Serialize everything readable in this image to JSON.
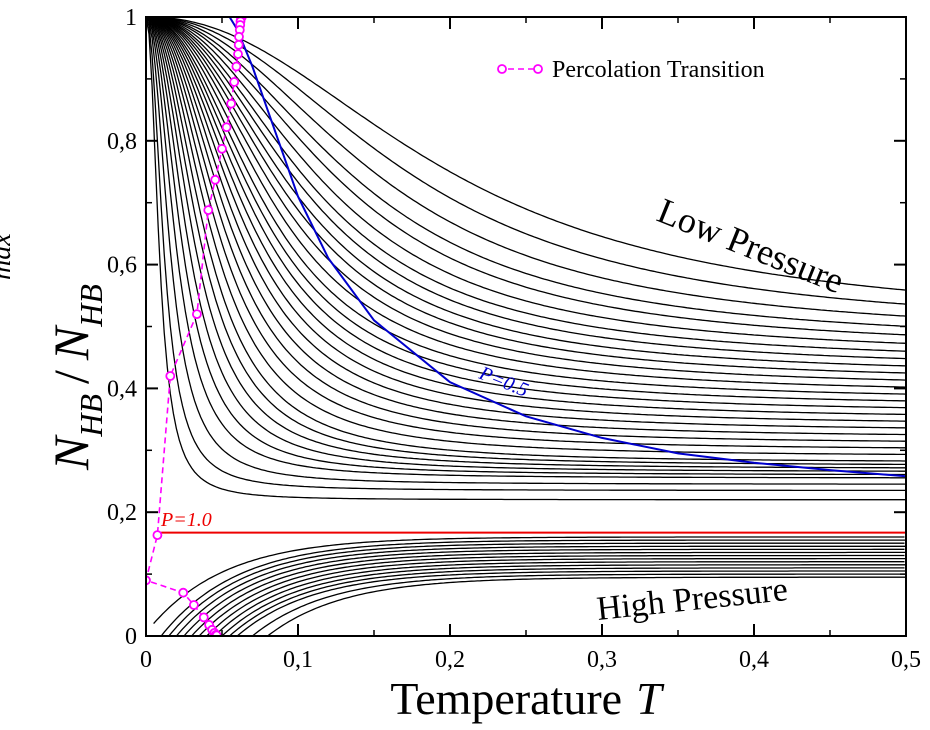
{
  "chart_data": {
    "type": "line",
    "title": "",
    "xlabel": "Temperature",
    "xlabel_symbol": "T",
    "ylabel": {
      "n": "N",
      "n_sub": "HB",
      "slash": "/",
      "d": "N",
      "d_sub": "HB",
      "d_sup": "max"
    },
    "xlim": [
      0,
      0.5
    ],
    "ylim": [
      0,
      1
    ],
    "xticks": [
      "0",
      "0,1",
      "0,2",
      "0,3",
      "0,4",
      "0,5"
    ],
    "yticks": [
      "0",
      "0,2",
      "0,4",
      "0,6",
      "0,8",
      "1"
    ],
    "grid": false,
    "legend_position": "top-right",
    "legend": [
      {
        "label": "Percolation Transition",
        "color": "#ff00ff"
      }
    ],
    "annotations": {
      "low_pressure": "Low Pressure",
      "high_pressure": "High Pressure",
      "p_half": "P=0.5",
      "p_one": "P=1.0"
    },
    "colors": {
      "isobar": "#000000",
      "p_half": "#0000cc",
      "p_one": "#ee0000",
      "percolation": "#ff00ff"
    },
    "series": [
      {
        "name": "Percolation Transition",
        "marker": "open-circle",
        "line": "dashed",
        "x": [
          0.063,
          0.0625,
          0.0622,
          0.062,
          0.0617,
          0.0612,
          0.061,
          0.0605,
          0.0595,
          0.058,
          0.056,
          0.053,
          0.05,
          0.0455,
          0.041,
          0.0335,
          0.016,
          0.0075,
          0.0,
          0.0245,
          0.0315,
          0.038,
          0.0415,
          0.0435,
          0.045,
          0.046,
          0.0465
        ],
        "y": [
          1.0,
          0.998,
          0.993,
          0.987,
          0.979,
          0.968,
          0.955,
          0.94,
          0.92,
          0.895,
          0.86,
          0.822,
          0.787,
          0.737,
          0.688,
          0.52,
          0.42,
          0.163,
          0.09,
          0.07,
          0.05,
          0.03,
          0.018,
          0.01,
          0.005,
          0.002,
          0.001
        ]
      }
    ],
    "isobars": {
      "description_note": "",
      "low_pressure_family": [
        {
          "knee_T": 0.009,
          "plateau": 0.22
        },
        {
          "knee_T": 0.012,
          "plateau": 0.235
        },
        {
          "knee_T": 0.016,
          "plateau": 0.245
        },
        {
          "knee_T": 0.02,
          "plateau": 0.255
        },
        {
          "knee_T": 0.024,
          "plateau": 0.26
        },
        {
          "knee_T": 0.028,
          "plateau": 0.265
        },
        {
          "knee_T": 0.032,
          "plateau": 0.27
        },
        {
          "knee_T": 0.036,
          "plateau": 0.275
        },
        {
          "knee_T": 0.04,
          "plateau": 0.28
        },
        {
          "knee_T": 0.044,
          "plateau": 0.29
        },
        {
          "knee_T": 0.048,
          "plateau": 0.3
        },
        {
          "knee_T": 0.052,
          "plateau": 0.31
        },
        {
          "knee_T": 0.056,
          "plateau": 0.32
        },
        {
          "knee_T": 0.06,
          "plateau": 0.33
        },
        {
          "knee_T": 0.064,
          "plateau": 0.34
        },
        {
          "knee_T": 0.068,
          "plateau": 0.35
        },
        {
          "knee_T": 0.072,
          "plateau": 0.36
        },
        {
          "knee_T": 0.076,
          "plateau": 0.37
        },
        {
          "knee_T": 0.08,
          "plateau": 0.38
        },
        {
          "knee_T": 0.085,
          "plateau": 0.39
        },
        {
          "knee_T": 0.09,
          "plateau": 0.4
        },
        {
          "knee_T": 0.095,
          "plateau": 0.41
        },
        {
          "knee_T": 0.1,
          "plateau": 0.42
        },
        {
          "knee_T": 0.106,
          "plateau": 0.43
        },
        {
          "knee_T": 0.112,
          "plateau": 0.44
        },
        {
          "knee_T": 0.12,
          "plateau": 0.45
        },
        {
          "knee_T": 0.13,
          "plateau": 0.46
        },
        {
          "knee_T": 0.14,
          "plateau": 0.47
        },
        {
          "knee_T": 0.155,
          "plateau": 0.48
        },
        {
          "knee_T": 0.175,
          "plateau": 0.49
        },
        {
          "knee_T": 0.2,
          "plateau": 0.5
        }
      ],
      "p_half_curve": {
        "x": [
          0.055,
          0.06,
          0.07,
          0.08,
          0.09,
          0.1,
          0.12,
          0.15,
          0.2,
          0.25,
          0.3,
          0.35,
          0.4,
          0.45,
          0.5
        ],
        "y": [
          1.0,
          0.98,
          0.92,
          0.85,
          0.78,
          0.71,
          0.61,
          0.51,
          0.41,
          0.355,
          0.32,
          0.295,
          0.28,
          0.268,
          0.258
        ]
      },
      "p_one_value": 0.167,
      "high_pressure_family": [
        {
          "x0": 0.005,
          "y0": 0.02,
          "plateau": 0.16
        },
        {
          "x0": 0.01,
          "y0": 0.0,
          "plateau": 0.155
        },
        {
          "x0": 0.015,
          "y0": 0.0,
          "plateau": 0.15
        },
        {
          "x0": 0.02,
          "y0": 0.0,
          "plateau": 0.145
        },
        {
          "x0": 0.025,
          "y0": 0.0,
          "plateau": 0.14
        },
        {
          "x0": 0.03,
          "y0": 0.0,
          "plateau": 0.135
        },
        {
          "x0": 0.035,
          "y0": 0.0,
          "plateau": 0.13
        },
        {
          "x0": 0.04,
          "y0": 0.0,
          "plateau": 0.125
        },
        {
          "x0": 0.045,
          "y0": 0.0,
          "plateau": 0.12
        },
        {
          "x0": 0.05,
          "y0": 0.0,
          "plateau": 0.115
        },
        {
          "x0": 0.055,
          "y0": 0.0,
          "plateau": 0.11
        },
        {
          "x0": 0.06,
          "y0": 0.0,
          "plateau": 0.105
        },
        {
          "x0": 0.07,
          "y0": 0.0,
          "plateau": 0.1
        },
        {
          "x0": 0.08,
          "y0": 0.0,
          "plateau": 0.095
        }
      ]
    }
  }
}
